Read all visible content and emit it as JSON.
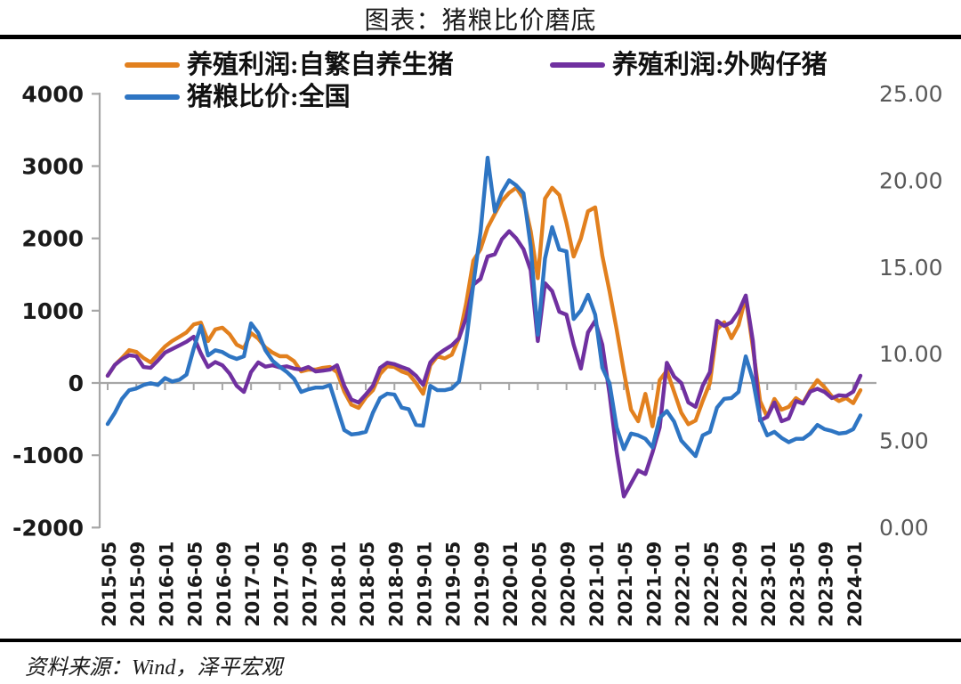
{
  "title": "图表：猪粮比价磨底",
  "source": "资料来源：Wind，泽平宏观",
  "colors": {
    "orange": "#E2801E",
    "purple": "#7030A0",
    "blue": "#2E75C3",
    "grid": "#A6A6A6",
    "left_axis_text": "#1A1A1A",
    "right_axis_text": "#595959",
    "x_axis_text": "#1A1A1A",
    "divider": "#000000"
  },
  "legend": [
    {
      "label": "养殖利润:自繁自养生猪",
      "color": "#E2801E"
    },
    {
      "label": "养殖利润:外购仔猪",
      "color": "#7030A0"
    },
    {
      "label": "猪粮比价:全国",
      "color": "#2E75C3"
    }
  ],
  "chart_data": {
    "type": "line",
    "title": "图表：猪粮比价磨底",
    "x_start": "2015-05",
    "x_end": "2024-02",
    "x_step_months": 1,
    "x_tick_labels": [
      "2015-05",
      "2015-09",
      "2016-01",
      "2016-05",
      "2016-09",
      "2017-01",
      "2017-05",
      "2017-09",
      "2018-01",
      "2018-05",
      "2018-09",
      "2019-01",
      "2019-05",
      "2019-09",
      "2020-01",
      "2020-05",
      "2020-09",
      "2021-01",
      "2021-05",
      "2021-09",
      "2022-01",
      "2022-05",
      "2022-09",
      "2023-01",
      "2023-05",
      "2023-09",
      "2024-01"
    ],
    "x_tick_every_points": 4,
    "left_axis": {
      "min": -2000,
      "max": 4000,
      "ticks": [
        4000,
        3000,
        2000,
        1000,
        0,
        -1000,
        -2000
      ]
    },
    "right_axis": {
      "min": 0,
      "max": 25,
      "tick_labels": [
        "25.00",
        "20.00",
        "15.00",
        "10.00",
        "5.00",
        "0.00"
      ],
      "tick_values": [
        25,
        20,
        15,
        10,
        5,
        0
      ]
    },
    "grid": "zero-line-only",
    "legend_position": "top-left",
    "series": [
      {
        "name": "养殖利润:自繁自养生猪",
        "axis": "left",
        "color": "#E2801E",
        "values": [
          100,
          250,
          345,
          455,
          430,
          345,
          285,
          395,
          505,
          580,
          640,
          700,
          810,
          835,
          580,
          740,
          765,
          675,
          530,
          480,
          690,
          615,
          490,
          420,
          370,
          370,
          300,
          160,
          185,
          185,
          210,
          220,
          150,
          -120,
          -300,
          -345,
          -200,
          -100,
          125,
          230,
          220,
          160,
          125,
          0,
          -150,
          245,
          370,
          340,
          390,
          615,
          1100,
          1690,
          1850,
          2150,
          2340,
          2520,
          2630,
          2700,
          2550,
          2100,
          1450,
          2550,
          2700,
          2600,
          2215,
          1750,
          2000,
          2375,
          2430,
          1760,
          1270,
          740,
          160,
          -370,
          -530,
          -150,
          -600,
          40,
          170,
          -120,
          -410,
          -570,
          -520,
          -250,
          0,
          740,
          840,
          620,
          800,
          1190,
          490,
          -250,
          -470,
          -220,
          -370,
          -330,
          -210,
          -280,
          -100,
          40,
          -60,
          -185,
          -250,
          -210,
          -280,
          -100
        ]
      },
      {
        "name": "养殖利润:外购仔猪",
        "axis": "left",
        "color": "#7030A0",
        "values": [
          100,
          250,
          330,
          385,
          370,
          220,
          210,
          310,
          420,
          470,
          520,
          570,
          640,
          410,
          220,
          290,
          245,
          130,
          -40,
          -125,
          150,
          285,
          225,
          245,
          215,
          230,
          200,
          185,
          220,
          160,
          170,
          185,
          245,
          -40,
          -230,
          -270,
          -160,
          -40,
          210,
          280,
          260,
          220,
          185,
          100,
          -25,
          285,
          390,
          460,
          520,
          620,
          900,
          1360,
          1440,
          1750,
          1780,
          1990,
          2100,
          2000,
          1850,
          1560,
          580,
          1380,
          1270,
          985,
          945,
          530,
          200,
          700,
          860,
          530,
          -150,
          -950,
          -1570,
          -1390,
          -1210,
          -1260,
          -960,
          -615,
          280,
          90,
          0,
          -270,
          -330,
          -40,
          150,
          860,
          790,
          840,
          985,
          1210,
          580,
          -520,
          -470,
          -270,
          -530,
          -490,
          -250,
          -285,
          -120,
          -80,
          -125,
          -210,
          -170,
          -180,
          -120,
          100
        ]
      },
      {
        "name": "猪粮比价:全国",
        "axis": "right",
        "color": "#2E75C3",
        "values": [
          5.95,
          6.6,
          7.4,
          7.9,
          8.0,
          8.2,
          8.3,
          8.2,
          8.6,
          8.4,
          8.5,
          8.8,
          10.3,
          11.6,
          9.9,
          10.2,
          10.1,
          9.85,
          9.7,
          9.85,
          11.75,
          11.2,
          10.2,
          9.6,
          9.25,
          8.95,
          8.55,
          7.8,
          7.95,
          8.05,
          8.05,
          8.2,
          6.9,
          5.6,
          5.35,
          5.4,
          5.5,
          6.6,
          7.45,
          7.7,
          7.65,
          6.9,
          6.8,
          5.9,
          5.85,
          8.15,
          7.9,
          7.9,
          8.0,
          8.4,
          10.7,
          14.0,
          17.0,
          21.3,
          18.2,
          19.3,
          20.0,
          19.7,
          19.25,
          16.2,
          11.1,
          15.5,
          17.3,
          16.0,
          15.9,
          12.0,
          12.5,
          13.4,
          12.25,
          9.2,
          8.3,
          5.75,
          4.5,
          5.4,
          5.3,
          5.1,
          4.6,
          6.3,
          6.7,
          6.1,
          5.0,
          4.55,
          4.1,
          5.3,
          5.5,
          6.9,
          7.4,
          7.45,
          7.8,
          9.85,
          8.5,
          6.25,
          5.3,
          5.5,
          5.15,
          4.9,
          5.1,
          5.1,
          5.4,
          5.9,
          5.65,
          5.55,
          5.4,
          5.45,
          5.65,
          6.45
        ]
      }
    ]
  }
}
